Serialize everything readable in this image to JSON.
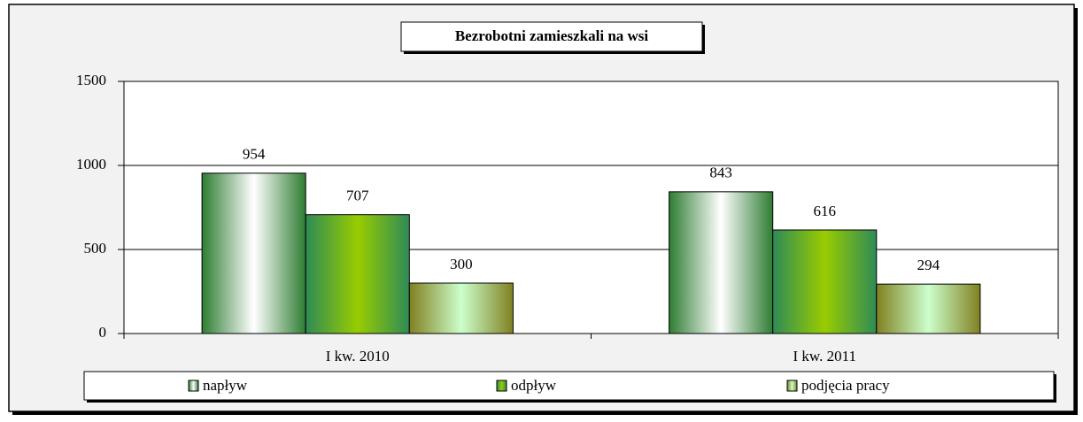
{
  "chart_data": {
    "type": "bar",
    "title": "Bezrobotni zamieszkali na wsi",
    "categories": [
      "I kw. 2010",
      "I kw. 2011"
    ],
    "series": [
      {
        "name": "napływ",
        "color": "#ffffff",
        "values": [
          954,
          843
        ]
      },
      {
        "name": "odpływ",
        "color": "#99cc00",
        "values": [
          707,
          616
        ]
      },
      {
        "name": "podjęcia pracy",
        "color": "#ccffcc",
        "values": [
          300,
          294
        ]
      }
    ],
    "ylim": [
      0,
      1500
    ],
    "yticks": [
      0,
      500,
      1000,
      1500
    ],
    "grid": true,
    "legend": "bottom"
  }
}
